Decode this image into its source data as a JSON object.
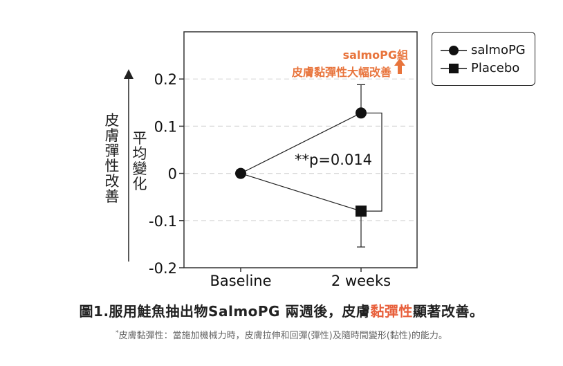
{
  "chart_data": {
    "type": "line",
    "categories": [
      "Baseline",
      "2 weeks"
    ],
    "series": [
      {
        "name": "salmoPG",
        "values": [
          0,
          0.128
        ],
        "error_upper": 0.188,
        "color": "#000000",
        "marker": "circle"
      },
      {
        "name": "Placebo",
        "values": [
          0,
          -0.08
        ],
        "error_lower": -0.156,
        "color": "#000000",
        "marker": "square"
      }
    ],
    "ylim": [
      -0.2,
      0.3
    ],
    "yticks": [
      "-0.2",
      "-0.1",
      "0",
      "0.1",
      "0.2"
    ],
    "ytick_values": [
      -0.2,
      -0.1,
      0,
      0.1,
      0.2
    ],
    "ylabel_left": "皮膚彈性改善",
    "ylabel_right": "平均變化",
    "annotation_p": "**p=0.014",
    "annotation_group": "salmoPG組",
    "annotation_effect": "皮膚黏彈性大幅改善",
    "annotation_color": "#e8743c",
    "grid": "horizontal dashed",
    "legend_position": "top-right outside"
  },
  "caption": {
    "prefix": "圖1.服用鮭魚抽出物SalmoPG 兩週後，皮膚",
    "highlight": "黏彈性",
    "suffix": "顯著改善。",
    "highlight_color": "#e8603c"
  },
  "footnote": {
    "marker": "*",
    "text": "皮膚黏彈性：當施加機械力時，皮膚拉伸和回彈(彈性)及隨時間變形(黏性)的能力。"
  }
}
